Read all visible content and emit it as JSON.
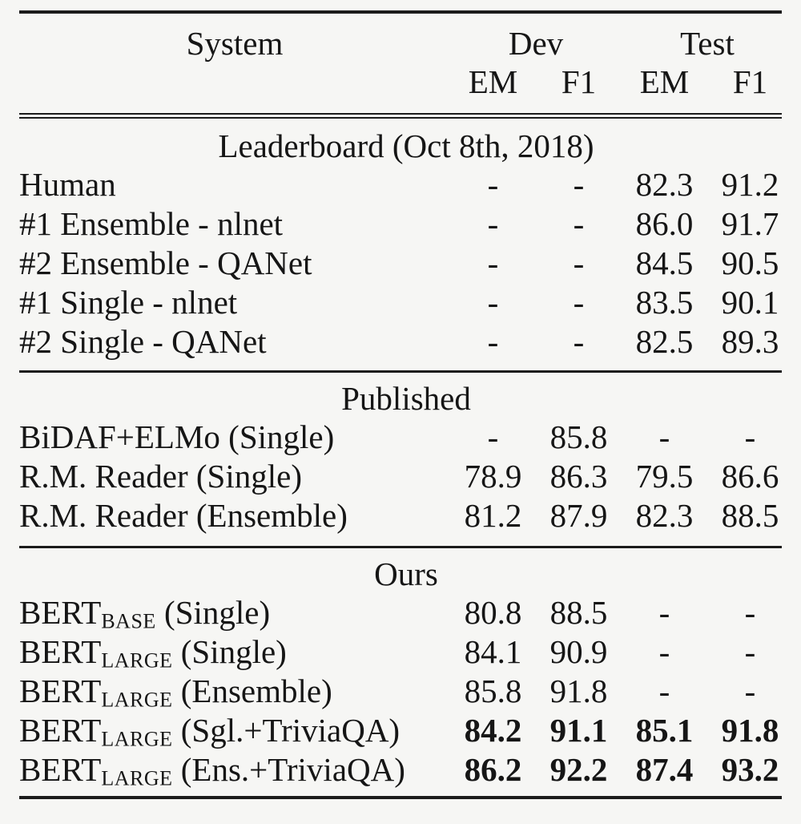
{
  "colors": {
    "background": "#f6f6f4",
    "text": "#161616",
    "rule": "#1b1b1b"
  },
  "table": {
    "header": {
      "system": "System",
      "dev": "Dev",
      "test": "Test",
      "cols": [
        "EM",
        "F1",
        "EM",
        "F1"
      ]
    },
    "sections": [
      {
        "title": "Leaderboard (Oct 8th, 2018)",
        "rows": [
          {
            "sys_pre": "Human",
            "sys_sub": "",
            "sys_post": "",
            "dev_em": "-",
            "dev_f1": "-",
            "test_em": "82.3",
            "test_f1": "91.2",
            "bold": false
          },
          {
            "sys_pre": "#1 Ensemble - nlnet",
            "sys_sub": "",
            "sys_post": "",
            "dev_em": "-",
            "dev_f1": "-",
            "test_em": "86.0",
            "test_f1": "91.7",
            "bold": false
          },
          {
            "sys_pre": "#2 Ensemble - QANet",
            "sys_sub": "",
            "sys_post": "",
            "dev_em": "-",
            "dev_f1": "-",
            "test_em": "84.5",
            "test_f1": "90.5",
            "bold": false
          },
          {
            "sys_pre": "#1 Single - nlnet",
            "sys_sub": "",
            "sys_post": "",
            "dev_em": "-",
            "dev_f1": "-",
            "test_em": "83.5",
            "test_f1": "90.1",
            "bold": false
          },
          {
            "sys_pre": "#2 Single - QANet",
            "sys_sub": "",
            "sys_post": "",
            "dev_em": "-",
            "dev_f1": "-",
            "test_em": "82.5",
            "test_f1": "89.3",
            "bold": false
          }
        ]
      },
      {
        "title": "Published",
        "rows": [
          {
            "sys_pre": "BiDAF+ELMo (Single)",
            "sys_sub": "",
            "sys_post": "",
            "dev_em": "-",
            "dev_f1": "85.8",
            "test_em": "-",
            "test_f1": "-",
            "bold": false
          },
          {
            "sys_pre": "R.M. Reader (Single)",
            "sys_sub": "",
            "sys_post": "",
            "dev_em": "78.9",
            "dev_f1": "86.3",
            "test_em": "79.5",
            "test_f1": "86.6",
            "bold": false
          },
          {
            "sys_pre": "R.M. Reader (Ensemble)",
            "sys_sub": "",
            "sys_post": "",
            "dev_em": "81.2",
            "dev_f1": "87.9",
            "test_em": "82.3",
            "test_f1": "88.5",
            "bold": false
          }
        ]
      },
      {
        "title": "Ours",
        "rows": [
          {
            "sys_pre": "BERT",
            "sys_sub": "BASE",
            "sys_post": " (Single)",
            "dev_em": "80.8",
            "dev_f1": "88.5",
            "test_em": "-",
            "test_f1": "-",
            "bold": false
          },
          {
            "sys_pre": "BERT",
            "sys_sub": "LARGE",
            "sys_post": " (Single)",
            "dev_em": "84.1",
            "dev_f1": "90.9",
            "test_em": "-",
            "test_f1": "-",
            "bold": false
          },
          {
            "sys_pre": "BERT",
            "sys_sub": "LARGE",
            "sys_post": " (Ensemble)",
            "dev_em": "85.8",
            "dev_f1": "91.8",
            "test_em": "-",
            "test_f1": "-",
            "bold": false
          },
          {
            "sys_pre": "BERT",
            "sys_sub": "LARGE",
            "sys_post": " (Sgl.+TriviaQA)",
            "dev_em": "84.2",
            "dev_f1": "91.1",
            "test_em": "85.1",
            "test_f1": "91.8",
            "bold": true
          },
          {
            "sys_pre": "BERT",
            "sys_sub": "LARGE",
            "sys_post": " (Ens.+TriviaQA)",
            "dev_em": "86.2",
            "dev_f1": "92.2",
            "test_em": "87.4",
            "test_f1": "93.2",
            "bold": true
          }
        ]
      }
    ]
  }
}
